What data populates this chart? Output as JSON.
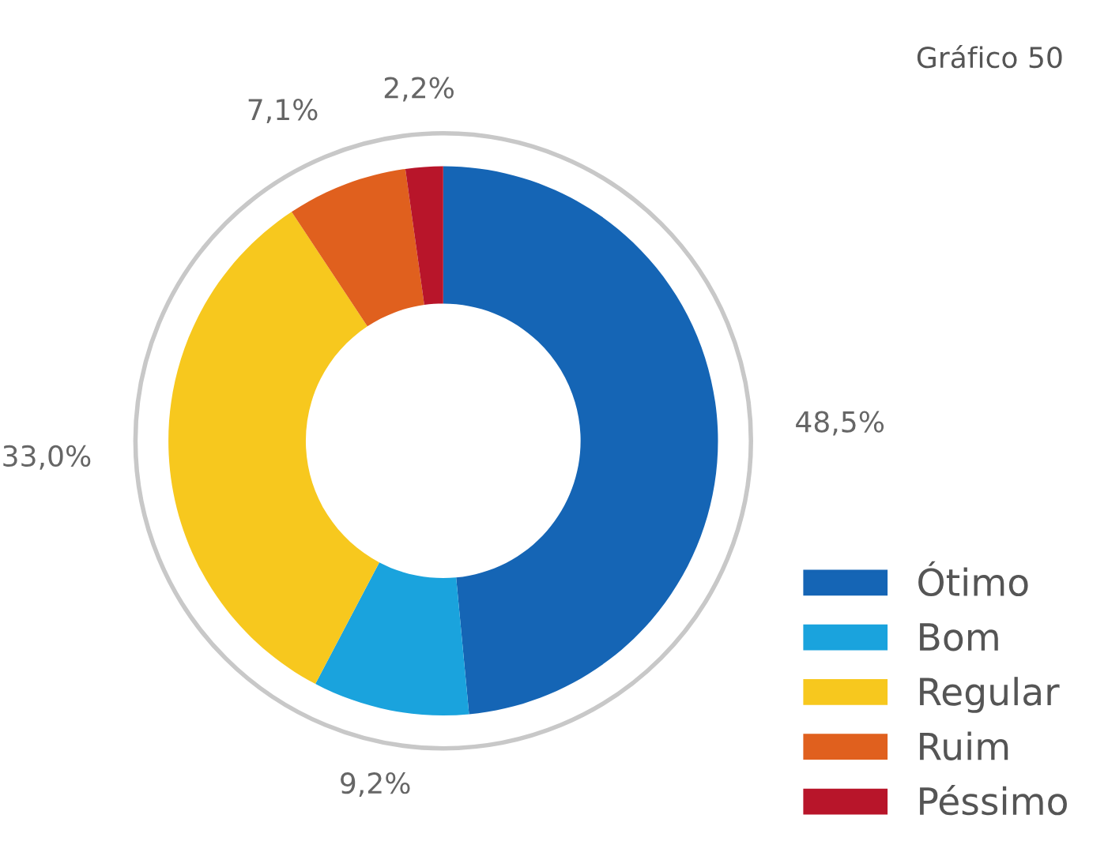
{
  "chart_data": {
    "type": "donut",
    "title": "Gráfico 50",
    "categories": [
      "Ótimo",
      "Bom",
      "Regular",
      "Ruim",
      "Péssimo"
    ],
    "values": [
      48.5,
      9.2,
      33.0,
      7.1,
      2.2
    ],
    "colors": [
      "#1565b5",
      "#1aa3dd",
      "#f7c81e",
      "#e0601e",
      "#b8152a"
    ],
    "value_labels": [
      "48,5%",
      "9,2%",
      "33,0%",
      "7,1%",
      "2,2%"
    ],
    "legend": "bottom right"
  }
}
